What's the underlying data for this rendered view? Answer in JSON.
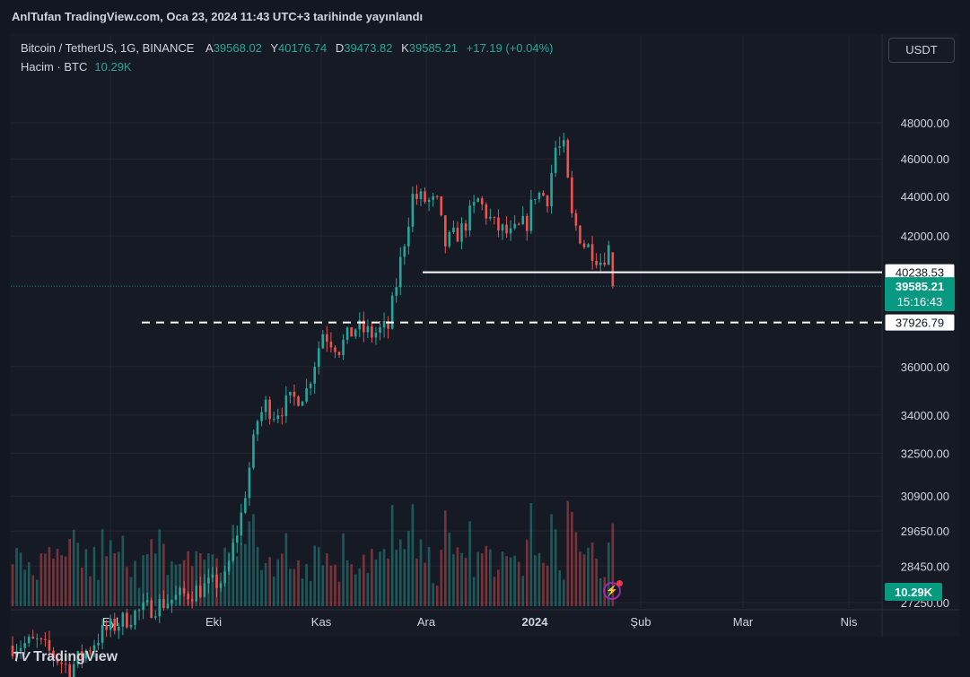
{
  "header": {
    "published": "AnlTufan TradingView.com, Oca 23, 2024 11:43 UTC+3 tarihinde yayınlandı"
  },
  "legend": {
    "symbol": "Bitcoin / TetherUS, 1G, BINANCE",
    "o_label": "A",
    "o": "39568.02",
    "h_label": "Y",
    "h": "40176.74",
    "l_label": "D",
    "l": "39473.82",
    "c_label": "K",
    "c": "39585.21",
    "change": "+17.19 (+0.04%)",
    "volume_label": "Hacim · BTC",
    "volume": "10.29K"
  },
  "currency_button": "USDT",
  "footer": {
    "brand": "TradingView",
    "logo": "TV"
  },
  "colors": {
    "up": "#26a69a",
    "down": "#ef5350",
    "background": "#161a25",
    "grid": "#232632",
    "text": "#d1d4dc"
  },
  "chart_data": {
    "type": "candlestick",
    "symbol": "BTCUSDT",
    "interval": "1D",
    "price_axis_ticks": [
      48000,
      46000,
      44000,
      42000,
      36000,
      34000,
      32500,
      30900,
      29650,
      28450,
      27250
    ],
    "price_axis_labels": [
      "48000.00",
      "46000.00",
      "44000.00",
      "42000.00",
      "36000.00",
      "34000.00",
      "32500.00",
      "30900.00",
      "29650.00",
      "28450.00",
      "27250.00"
    ],
    "time_axis_labels": [
      "Eyl",
      "Eki",
      "Kas",
      "Ara",
      "2024",
      "Şub",
      "Mar",
      "Nis"
    ],
    "time_axis_bold": "2024",
    "price_range": [
      27000,
      49500
    ],
    "scale": "logarithmic",
    "horizontal_lines": [
      {
        "price": 40238.53,
        "label": "40238.53",
        "style": "solid",
        "color": "#ffffff"
      },
      {
        "price": 37926.79,
        "label": "37926.79",
        "style": "dashed",
        "color": "#ffffff"
      }
    ],
    "last_price": {
      "price": 39585.21,
      "label": "39585.21",
      "countdown": "15:16:43",
      "color": "#089981"
    },
    "last_volume": {
      "label": "10.29K",
      "color": "#089981"
    },
    "waypoints": [
      {
        "t": 0,
        "p": 25900
      },
      {
        "t": 6,
        "p": 26000
      },
      {
        "t": 14,
        "p": 25200
      },
      {
        "t": 22,
        "p": 26300
      },
      {
        "t": 30,
        "p": 26900
      },
      {
        "t": 38,
        "p": 27300
      },
      {
        "t": 46,
        "p": 27700
      },
      {
        "t": 52,
        "p": 28000
      },
      {
        "t": 56,
        "p": 30200
      },
      {
        "t": 60,
        "p": 33800
      },
      {
        "t": 62,
        "p": 34400
      },
      {
        "t": 64,
        "p": 34100
      },
      {
        "t": 72,
        "p": 35000
      },
      {
        "t": 76,
        "p": 37500
      },
      {
        "t": 80,
        "p": 36800
      },
      {
        "t": 84,
        "p": 37700
      },
      {
        "t": 88,
        "p": 37400
      },
      {
        "t": 92,
        "p": 37700
      },
      {
        "t": 96,
        "p": 41800
      },
      {
        "t": 98,
        "p": 44000
      },
      {
        "t": 104,
        "p": 43600
      },
      {
        "t": 106,
        "p": 41600
      },
      {
        "t": 110,
        "p": 42300
      },
      {
        "t": 114,
        "p": 43800
      },
      {
        "t": 118,
        "p": 42500
      },
      {
        "t": 122,
        "p": 42000
      },
      {
        "t": 126,
        "p": 42700
      },
      {
        "t": 128,
        "p": 44200
      },
      {
        "t": 131,
        "p": 44000
      },
      {
        "t": 133,
        "p": 46600
      },
      {
        "t": 135,
        "p": 46500
      },
      {
        "t": 137,
        "p": 42900
      },
      {
        "t": 140,
        "p": 41600
      },
      {
        "t": 142,
        "p": 41300
      },
      {
        "t": 144,
        "p": 40800
      },
      {
        "t": 146,
        "p": 41400
      },
      {
        "t": 147,
        "p": 39585
      }
    ]
  }
}
